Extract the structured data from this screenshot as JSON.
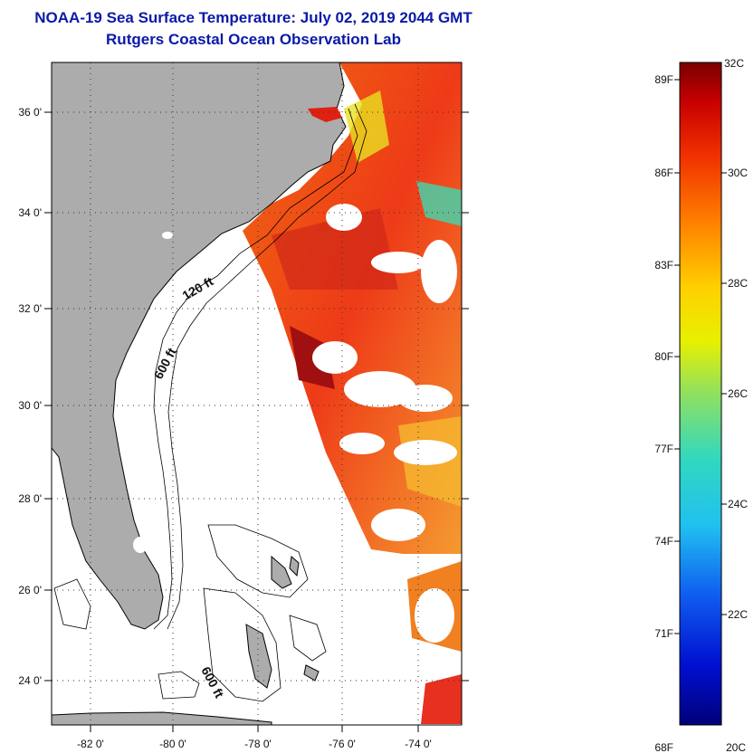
{
  "title": {
    "line1": "NOAA-19 Sea Surface Temperature:  July 02, 2019 2044 GMT",
    "line2": "Rutgers Coastal Ocean Observation Lab"
  },
  "map": {
    "lon_ticks": [
      "-82 0'",
      "-80 0'",
      "-78 0'",
      "-76 0'",
      "-74 0'"
    ],
    "lat_ticks": [
      "36 0'",
      "34 0'",
      "32 0'",
      "30 0'",
      "28 0'",
      "26 0'",
      "24 0'"
    ],
    "depth_labels": [
      "120 ft",
      "600 ft",
      "600 ft"
    ],
    "colors": {
      "land": "#acacac",
      "frame": "#000000",
      "ocean_nodata": "#ffffff"
    }
  },
  "legend": {
    "fahrenheit": [
      "89F",
      "86F",
      "83F",
      "80F",
      "77F",
      "74F",
      "71F",
      "68F"
    ],
    "celsius": [
      "32C",
      "30C",
      "28C",
      "26C",
      "24C",
      "22C",
      "20C"
    ],
    "colors": [
      "#7a0000",
      "#c80000",
      "#f03000",
      "#ff7f00",
      "#ffd000",
      "#e8f000",
      "#90e060",
      "#30d8c0",
      "#20c0f0",
      "#1060f0",
      "#0010d0",
      "#00007a"
    ]
  }
}
